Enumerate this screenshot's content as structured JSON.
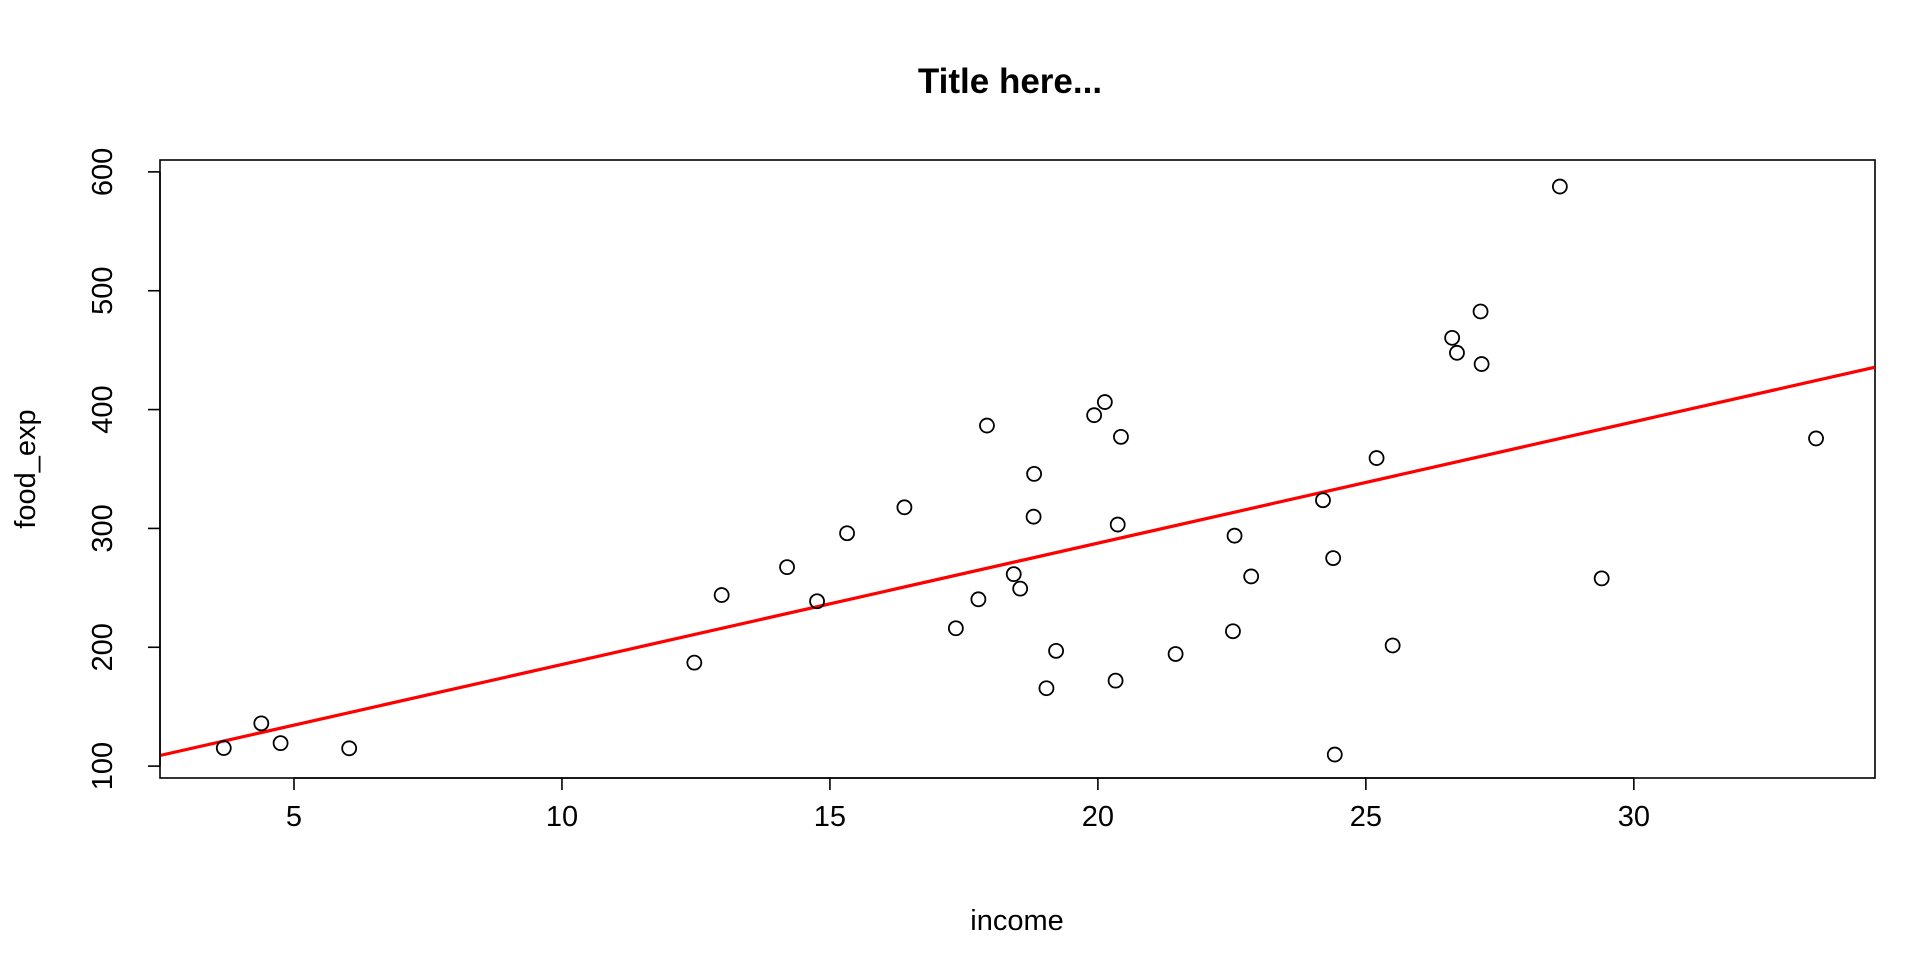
{
  "chart_data": {
    "type": "scatter",
    "title": "Title here...",
    "xlabel": "income",
    "ylabel": "food_exp",
    "xlim": [
      2.5,
      34.5
    ],
    "ylim": [
      90,
      610
    ],
    "xticks": [
      5,
      10,
      15,
      20,
      25,
      30
    ],
    "yticks": [
      100,
      200,
      300,
      400,
      500,
      600
    ],
    "grid": false,
    "points": [
      {
        "x": 3.69,
        "y": 115.22
      },
      {
        "x": 4.39,
        "y": 135.98
      },
      {
        "x": 4.75,
        "y": 119.34
      },
      {
        "x": 6.03,
        "y": 114.96
      },
      {
        "x": 12.47,
        "y": 187.05
      },
      {
        "x": 12.98,
        "y": 243.92
      },
      {
        "x": 14.2,
        "y": 267.43
      },
      {
        "x": 14.76,
        "y": 238.71
      },
      {
        "x": 15.32,
        "y": 295.94
      },
      {
        "x": 16.39,
        "y": 317.78
      },
      {
        "x": 17.35,
        "y": 216.0
      },
      {
        "x": 17.77,
        "y": 240.35
      },
      {
        "x": 17.93,
        "y": 386.57
      },
      {
        "x": 18.43,
        "y": 261.53
      },
      {
        "x": 18.55,
        "y": 249.34
      },
      {
        "x": 18.8,
        "y": 309.87
      },
      {
        "x": 18.81,
        "y": 345.89
      },
      {
        "x": 19.04,
        "y": 165.54
      },
      {
        "x": 19.22,
        "y": 196.98
      },
      {
        "x": 19.93,
        "y": 395.26
      },
      {
        "x": 20.13,
        "y": 406.34
      },
      {
        "x": 20.33,
        "y": 171.92
      },
      {
        "x": 20.37,
        "y": 303.23
      },
      {
        "x": 20.43,
        "y": 377.04
      },
      {
        "x": 21.45,
        "y": 194.35
      },
      {
        "x": 22.52,
        "y": 213.48
      },
      {
        "x": 22.55,
        "y": 293.87
      },
      {
        "x": 22.86,
        "y": 259.61
      },
      {
        "x": 24.2,
        "y": 323.71
      },
      {
        "x": 24.39,
        "y": 275.02
      },
      {
        "x": 24.42,
        "y": 109.71
      },
      {
        "x": 25.2,
        "y": 359.19
      },
      {
        "x": 25.5,
        "y": 201.51
      },
      {
        "x": 26.61,
        "y": 460.36
      },
      {
        "x": 26.7,
        "y": 447.76
      },
      {
        "x": 27.14,
        "y": 482.55
      },
      {
        "x": 27.16,
        "y": 438.29
      },
      {
        "x": 28.62,
        "y": 587.66
      },
      {
        "x": 29.4,
        "y": 257.95
      },
      {
        "x": 33.4,
        "y": 375.73
      }
    ],
    "regression_line": {
      "intercept": 83.42,
      "slope": 10.21,
      "color": "#ff0000"
    },
    "point_color": "#000000"
  }
}
